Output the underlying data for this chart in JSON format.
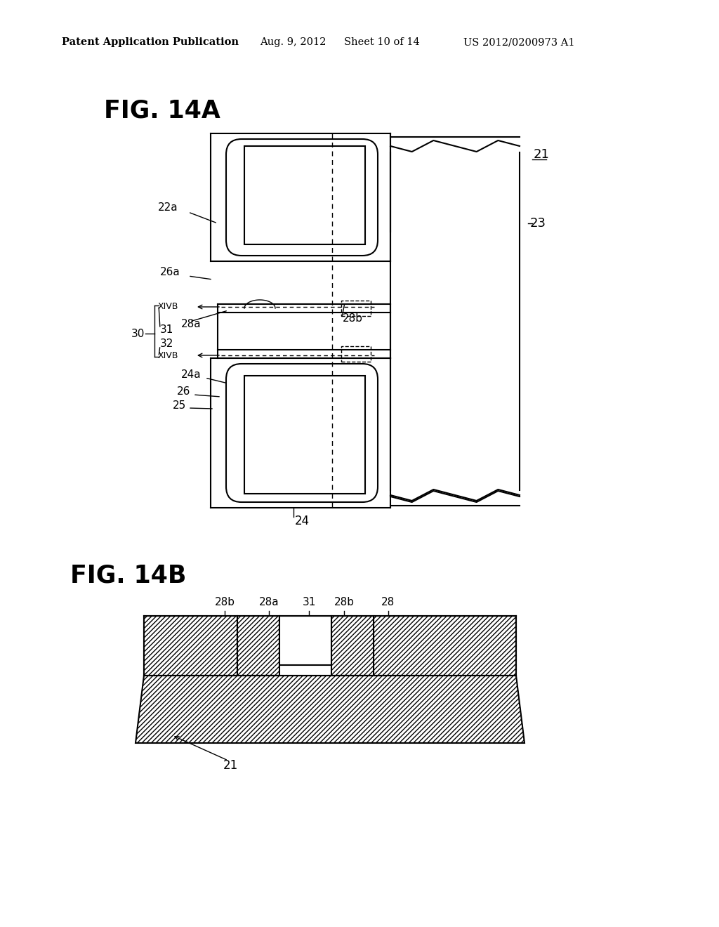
{
  "bg_color": "#ffffff",
  "line_color": "#000000",
  "header_text": "Patent Application Publication",
  "header_date": "Aug. 9, 2012",
  "header_sheet": "Sheet 10 of 14",
  "header_patent": "US 2012/0200973 A1",
  "fig14a_label": "FIG. 14A",
  "fig14b_label": "FIG. 14B"
}
